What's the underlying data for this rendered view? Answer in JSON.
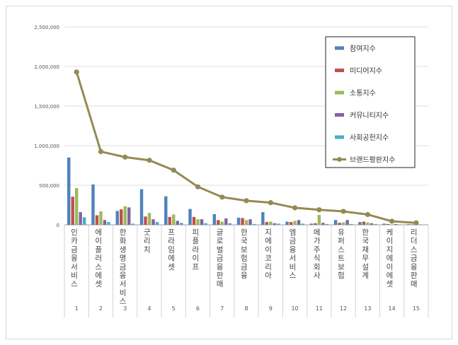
{
  "chart_data": {
    "type": "bar",
    "title": "",
    "xlabel": "",
    "ylabel": "",
    "ylim": [
      0,
      2500000
    ],
    "yticks": [
      0,
      500000,
      1000000,
      1500000,
      2000000,
      2500000
    ],
    "ytick_labels": [
      "0",
      "500,000",
      "1,000,000",
      "1,500,000",
      "2,000,000",
      "2,500,000"
    ],
    "grid": true,
    "legend_position": "top-right",
    "categories": [
      "1",
      "2",
      "3",
      "4",
      "5",
      "6",
      "7",
      "8",
      "9",
      "10",
      "11",
      "12",
      "13",
      "14",
      "15"
    ],
    "category_names": [
      "인카금융서비스",
      "에이플러스에셋",
      "한화생명금융서비스",
      "굿리치",
      "프라임에셋",
      "피플라이프",
      "글로벌금융판매",
      "한국보험금융",
      "지에이코리아",
      "엠금융서비스",
      "메가주식회사",
      "유퍼스트보험",
      "한국재무설계",
      "케이지에이에셋",
      "리더스금융판매"
    ],
    "series": [
      {
        "name": "참여지수",
        "color": "#4f81bd",
        "kind": "bar",
        "values": [
          850000,
          510000,
          175000,
          450000,
          360000,
          200000,
          135000,
          90000,
          160000,
          40000,
          15000,
          60000,
          35000,
          15000,
          8000
        ]
      },
      {
        "name": "미디어지수",
        "color": "#c0504d",
        "kind": "bar",
        "values": [
          355000,
          120000,
          195000,
          105000,
          100000,
          100000,
          60000,
          85000,
          35000,
          35000,
          20000,
          25000,
          40000,
          10000,
          5000
        ]
      },
      {
        "name": "소통지수",
        "color": "#9bbb59",
        "kind": "bar",
        "values": [
          465000,
          170000,
          235000,
          150000,
          130000,
          70000,
          40000,
          60000,
          40000,
          50000,
          125000,
          30000,
          30000,
          5000,
          4000
        ]
      },
      {
        "name": "커뮤니티지수",
        "color": "#8064a2",
        "kind": "bar",
        "values": [
          160000,
          60000,
          220000,
          70000,
          50000,
          70000,
          80000,
          70000,
          20000,
          60000,
          25000,
          60000,
          20000,
          10000,
          4000
        ]
      },
      {
        "name": "사회공헌지수",
        "color": "#4bacc6",
        "kind": "bar",
        "values": [
          95000,
          35000,
          15000,
          35000,
          25000,
          20000,
          20000,
          10000,
          15000,
          15000,
          10000,
          10000,
          10000,
          5000,
          3000
        ]
      },
      {
        "name": "브랜드평판지수",
        "color": "#948a54",
        "kind": "line",
        "values": [
          1930000,
          925000,
          855000,
          815000,
          690000,
          480000,
          350000,
          305000,
          280000,
          215000,
          190000,
          170000,
          130000,
          45000,
          25000
        ]
      }
    ]
  }
}
